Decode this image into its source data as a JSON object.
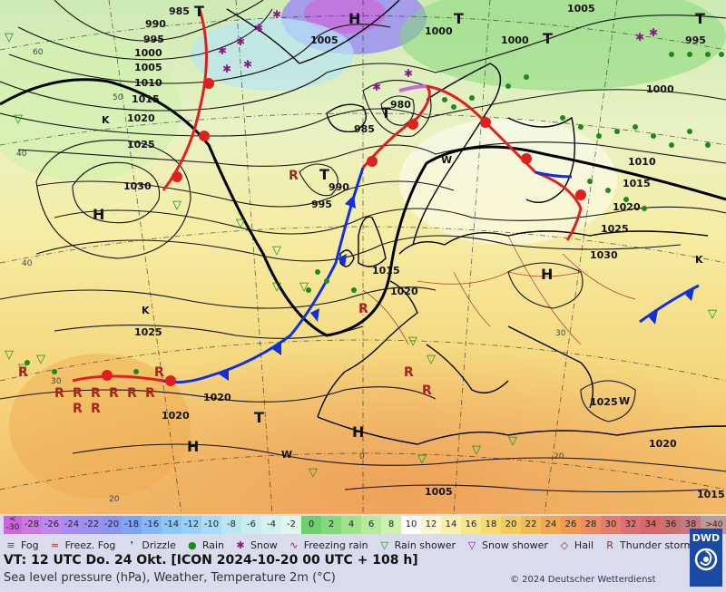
{
  "map": {
    "pressure_labels": [
      "985",
      "990",
      "995",
      "1000",
      "1005",
      "1010",
      "1015",
      "1020",
      "1025",
      "1030",
      "980",
      "1000",
      "1005",
      "995",
      "1005",
      "1010",
      "1015",
      "1020",
      "1025",
      "1030",
      "1015",
      "1020",
      "1025",
      "1020",
      "1020",
      "1025",
      "1020",
      "1000",
      "995",
      "990",
      "985",
      "1015",
      "1000",
      "1005"
    ],
    "pressure_centers": [
      "H",
      "H",
      "H",
      "H",
      "H",
      "T",
      "T",
      "T",
      "T",
      "T",
      "T",
      "T",
      "K",
      "K",
      "K",
      "W",
      "W",
      "W"
    ],
    "temperature_labels": [
      "60",
      "50",
      "40",
      "40",
      "30",
      "20",
      "0",
      "20",
      "30"
    ]
  },
  "legend": {
    "scale_unit_top": "<",
    "scale_unit_bottom": "-30",
    "scale": [
      {
        "v": "-30",
        "c": "#cc66dd"
      },
      {
        "v": "-28",
        "c": "#cc77e3"
      },
      {
        "v": "-26",
        "c": "#bb88ee"
      },
      {
        "v": "-24",
        "c": "#a98cf2"
      },
      {
        "v": "-22",
        "c": "#9c8ff0"
      },
      {
        "v": "-20",
        "c": "#8a95f2"
      },
      {
        "v": "-18",
        "c": "#7fa3f5"
      },
      {
        "v": "-16",
        "c": "#86b6f7"
      },
      {
        "v": "-14",
        "c": "#8ec6f7"
      },
      {
        "v": "-12",
        "c": "#98d2f8"
      },
      {
        "v": "-10",
        "c": "#a8ddf7"
      },
      {
        "v": "-8",
        "c": "#b8e6f5"
      },
      {
        "v": "-6",
        "c": "#c8edf3"
      },
      {
        "v": "-4",
        "c": "#d4f2ef"
      },
      {
        "v": "-2",
        "c": "#dff6ea"
      },
      {
        "v": "0",
        "c": "#6ecf6e"
      },
      {
        "v": "2",
        "c": "#86d97a"
      },
      {
        "v": "4",
        "c": "#9ee28a"
      },
      {
        "v": "6",
        "c": "#b6ea9a"
      },
      {
        "v": "8",
        "c": "#cdf2ac"
      },
      {
        "v": "10",
        "c": "#ffffff"
      },
      {
        "v": "12",
        "c": "#fbf7d2"
      },
      {
        "v": "14",
        "c": "#f9f0b0"
      },
      {
        "v": "16",
        "c": "#f6e78e"
      },
      {
        "v": "18",
        "c": "#f5dc6c"
      },
      {
        "v": "20",
        "c": "#f4cc5c"
      },
      {
        "v": "22",
        "c": "#f3bb55"
      },
      {
        "v": "24",
        "c": "#f0a94e"
      },
      {
        "v": "26",
        "c": "#ee9a52"
      },
      {
        "v": "28",
        "c": "#ec8c60"
      },
      {
        "v": "30",
        "c": "#e57d6b"
      },
      {
        "v": "32",
        "c": "#dd7072"
      },
      {
        "v": "34",
        "c": "#d6686e"
      },
      {
        "v": "36",
        "c": "#cc7070"
      },
      {
        "v": "38",
        "c": "#c47a80"
      },
      {
        "v": ">40 °C",
        "c": "#bf9898"
      }
    ],
    "weather": [
      {
        "sym": "≡",
        "label": "Fog",
        "color": "#6b5b00"
      },
      {
        "sym": "≈",
        "label": "Freez. Fog",
        "color": "#aa2222"
      },
      {
        "sym": "❜",
        "label": "Drizzle",
        "color": "#1a8a1a"
      },
      {
        "sym": "●",
        "label": "Rain",
        "color": "#1a8a1a"
      },
      {
        "sym": "✱",
        "label": "Snow",
        "color": "#8a1a8a"
      },
      {
        "sym": "∿",
        "label": "Freezing rain",
        "color": "#aa2222"
      },
      {
        "sym": "▽",
        "label": "Rain shower",
        "color": "#1a8a1a"
      },
      {
        "sym": "▽",
        "label": "Snow shower",
        "color": "#8a1a8a"
      },
      {
        "sym": "◇",
        "label": "Hail",
        "color": "#aa2222"
      },
      {
        "sym": "R",
        "label": "Thunder storm",
        "color": "#aa2222"
      }
    ],
    "valid_time": "VT: 12 UTC Do.  24 Okt. [ICON 2024-10-20  00 UTC + 108 h]",
    "description": "Sea level pressure (hPa), Weather, Temperature 2m (°C)",
    "copyright": "© 2024 Deutscher Wetterdienst",
    "logo_text": "DWD"
  }
}
